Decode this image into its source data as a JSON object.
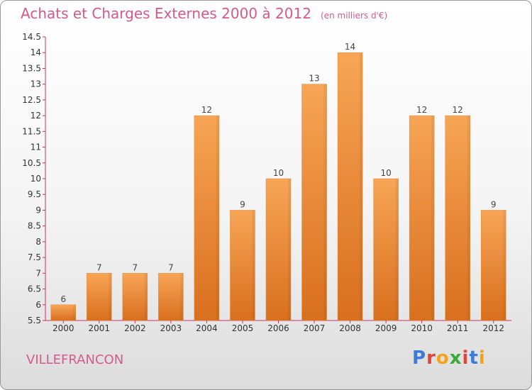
{
  "header": {
    "title": "Achats et Charges Externes 2000 à 2012",
    "unit": "(en milliers d'€)"
  },
  "footer": {
    "commune": "VILLEFRANCON",
    "logo": "Proxiti"
  },
  "colors": {
    "title": "#d45a8c",
    "bar_top": "#f7a556",
    "bar_bottom": "#d86f1e",
    "axis": "#cc2f6a",
    "logo": [
      "#3d7bd9",
      "#e0433a",
      "#f5a21b",
      "#3aaa3a",
      "#e0433a",
      "#3d7bd9",
      "#f5a21b"
    ]
  },
  "chart_data": {
    "type": "bar",
    "title": "Achats et Charges Externes 2000 à 2012",
    "subtitle": "(en milliers d'€)",
    "xlabel": "",
    "ylabel": "",
    "categories": [
      "2000",
      "2001",
      "2002",
      "2003",
      "2004",
      "2005",
      "2006",
      "2007",
      "2008",
      "2009",
      "2010",
      "2011",
      "2012"
    ],
    "values": [
      6,
      7,
      7,
      7,
      12,
      9,
      10,
      13,
      14,
      10,
      12,
      12,
      9
    ],
    "ylim": [
      5.5,
      14.5
    ],
    "yticks": [
      "5.5",
      "6",
      "6.5",
      "7",
      "7.5",
      "8",
      "8.5",
      "9",
      "9.5",
      "10",
      "10.5",
      "11",
      "11.5",
      "12",
      "12.5",
      "13",
      "13.5",
      "14",
      "14.5"
    ],
    "grid": false,
    "legend": "none"
  }
}
